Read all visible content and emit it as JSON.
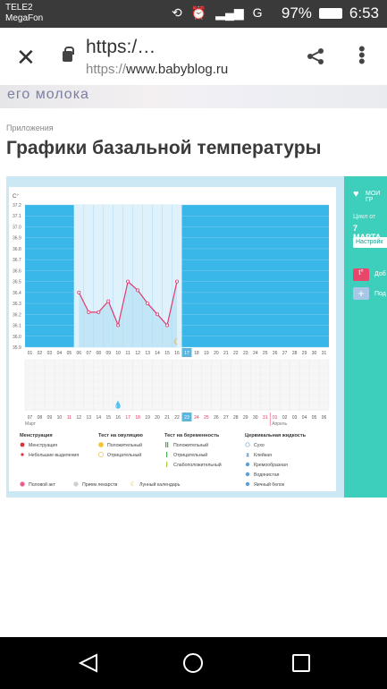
{
  "status_bar": {
    "carrier_line1": "TELE2",
    "carrier_line2": "MegaFon",
    "battery": "97%",
    "time": "6:53",
    "net": "G"
  },
  "browser": {
    "title": "https:/…",
    "url_proto": "https://",
    "url_host": "www.babyblog.ru"
  },
  "banner": {
    "text": "его молока"
  },
  "page": {
    "breadcrumb": "Приложения",
    "title": "Графики базальной температуры"
  },
  "sidebar": {
    "heart_label": "МОИ ГР",
    "cycle_label": "Цикл от",
    "cycle_date": "7 МАРТА",
    "settings": "Настройк",
    "add_label": "Доб",
    "add2_label": "Под",
    "add_btn": "t°",
    "add2_btn": "+"
  },
  "chart_data": {
    "type": "line",
    "unit_label": "C°",
    "y_ticks": [
      "37.2",
      "37.1",
      "37.0",
      "36.9",
      "36.8",
      "36.7",
      "36.6",
      "36.5",
      "36.4",
      "36.3",
      "36.2",
      "36.1",
      "36.0",
      "35.9"
    ],
    "x_days": [
      "01",
      "02",
      "03",
      "04",
      "05",
      "06",
      "07",
      "08",
      "09",
      "10",
      "11",
      "12",
      "13",
      "14",
      "15",
      "16",
      "17",
      "18",
      "19",
      "20",
      "21",
      "22",
      "23",
      "24",
      "25",
      "26",
      "27",
      "28",
      "29",
      "30",
      "31"
    ],
    "current_day": "17",
    "series": [
      {
        "x": [
          "06",
          "07",
          "08",
          "09",
          "10",
          "11",
          "12",
          "13",
          "14",
          "15",
          "16"
        ],
        "values": [
          36.4,
          36.22,
          36.22,
          36.32,
          36.1,
          36.5,
          36.42,
          36.3,
          36.2,
          36.1,
          36.5
        ]
      }
    ],
    "cycle_days": [
      6,
      16
    ],
    "date_row": [
      "07",
      "08",
      "09",
      "10",
      "11",
      "12",
      "13",
      "14",
      "15",
      "16",
      "17",
      "18",
      "19",
      "20",
      "21",
      "22",
      "23",
      "24",
      "25",
      "26",
      "27",
      "28",
      "29",
      "30",
      "31",
      "01",
      "02",
      "03",
      "04",
      "05",
      "06"
    ],
    "date_row_red": [
      "11",
      "17",
      "18",
      "24",
      "25",
      "31",
      "01"
    ],
    "date_row_highlight": "23",
    "month1": "Март",
    "month2": "Апрель",
    "moon_day": "16",
    "drop_day": "16"
  },
  "legend": {
    "col1_title": "Менструация",
    "col1_items": [
      "Менструация",
      "Небольшие выделения"
    ],
    "col2_title": "Тест на овуляцию",
    "col2_items": [
      "Положительный",
      "Отрицательный"
    ],
    "col3_title": "Тест на беременность",
    "col3_items": [
      "Положительный",
      "Отрицательный",
      "Слабоположительный"
    ],
    "col4_title": "Цервикальная жидкость",
    "col4_items": [
      "Сухо",
      "Клейкая",
      "Кремообразная",
      "Водянистая",
      "Яичный белок"
    ],
    "bottom_items": [
      "Половой акт",
      "Прием лекарств",
      "Лунный календарь"
    ],
    "colors": {
      "accent": "#3dcfbb",
      "plot_bg": "#39b7e9",
      "line": "#e43870",
      "highlight": "#5bb6de"
    }
  }
}
